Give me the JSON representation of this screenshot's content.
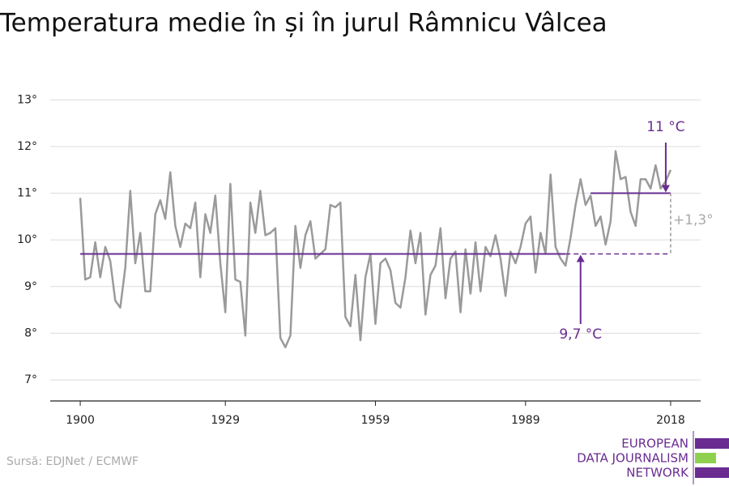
{
  "chart_data": {
    "type": "line",
    "title": "Temperatura medie în și în jurul Râmnicu Vâlcea",
    "x": [
      1900,
      1901,
      1902,
      1903,
      1904,
      1905,
      1906,
      1907,
      1908,
      1909,
      1910,
      1911,
      1912,
      1913,
      1914,
      1915,
      1916,
      1917,
      1918,
      1919,
      1920,
      1921,
      1922,
      1923,
      1924,
      1925,
      1926,
      1927,
      1928,
      1929,
      1930,
      1931,
      1932,
      1933,
      1934,
      1935,
      1936,
      1937,
      1938,
      1939,
      1940,
      1941,
      1942,
      1943,
      1944,
      1945,
      1946,
      1947,
      1948,
      1949,
      1950,
      1951,
      1952,
      1953,
      1954,
      1955,
      1956,
      1957,
      1958,
      1959,
      1960,
      1961,
      1962,
      1963,
      1964,
      1965,
      1966,
      1967,
      1968,
      1969,
      1970,
      1971,
      1972,
      1973,
      1974,
      1975,
      1976,
      1977,
      1978,
      1979,
      1980,
      1981,
      1982,
      1983,
      1984,
      1985,
      1986,
      1987,
      1988,
      1989,
      1990,
      1991,
      1992,
      1993,
      1994,
      1995,
      1996,
      1997,
      1998,
      1999,
      2000,
      2001,
      2002,
      2003,
      2004,
      2005,
      2006,
      2007,
      2008,
      2009,
      2010,
      2011,
      2012,
      2013,
      2014,
      2015,
      2016,
      2017,
      2018
    ],
    "series": [
      {
        "color": "#9a9a9a",
        "values": [
          10.9,
          9.15,
          9.2,
          9.95,
          9.2,
          9.85,
          9.55,
          8.7,
          8.55,
          9.4,
          11.05,
          9.5,
          10.15,
          8.9,
          8.9,
          10.55,
          10.85,
          10.45,
          11.45,
          10.3,
          9.85,
          10.35,
          10.25,
          10.8,
          9.2,
          10.55,
          10.15,
          10.95,
          9.5,
          8.45,
          11.2,
          9.15,
          9.1,
          7.95,
          10.8,
          10.15,
          11.05,
          10.1,
          10.15,
          10.25,
          7.9,
          7.7,
          7.95,
          10.3,
          9.4,
          10.1,
          10.4,
          9.6,
          9.7,
          9.8,
          10.75,
          10.7,
          10.8,
          8.35,
          8.15,
          9.25,
          7.85,
          9.2,
          9.7,
          8.2,
          9.5,
          9.6,
          9.35,
          8.65,
          8.55,
          9.2,
          10.2,
          9.5,
          10.15,
          8.4,
          9.25,
          9.45,
          10.25,
          8.75,
          9.6,
          9.75,
          8.45,
          9.8,
          8.85,
          9.95,
          8.9,
          9.85,
          9.65,
          10.1,
          9.6,
          8.8,
          9.75,
          9.5,
          9.85,
          10.35,
          10.5,
          9.3,
          10.15,
          9.7,
          11.4,
          9.85,
          9.6,
          9.45,
          10.05,
          10.75,
          11.3,
          10.75,
          10.95,
          10.3,
          10.5,
          9.9,
          10.4,
          11.9,
          11.3,
          11.35,
          10.6,
          10.3,
          11.3,
          11.3,
          11.1,
          11.6,
          11.1,
          11.25,
          11.5
        ]
      }
    ],
    "xlim": [
      1894,
      2024
    ],
    "xticks": [
      1900,
      1929,
      1959,
      1989,
      2018
    ],
    "ylim": [
      6.55,
      13.3
    ],
    "yticks": [
      {
        "value": 7,
        "label": "7°"
      },
      {
        "value": 8,
        "label": "8°"
      },
      {
        "value": 9,
        "label": "9°"
      },
      {
        "value": 10,
        "label": "10°"
      },
      {
        "value": 11,
        "label": "11°"
      },
      {
        "value": 12,
        "label": "12°"
      },
      {
        "value": 13,
        "label": "13°"
      }
    ],
    "grid": true,
    "baseline": {
      "value": 9.7,
      "label": "9,7 °C",
      "color": "#6a2c91",
      "x_start": 1900,
      "x_solid_end": 1997,
      "x_end": 2018,
      "label_x": 2000
    },
    "recent": {
      "value": 11,
      "label": "11 °C",
      "color": "#6a2c91",
      "x_start": 2002,
      "x_end": 2018
    },
    "difference": {
      "label": "+1,3°",
      "x": 2018
    }
  },
  "source": "Sursă: EDJNet / ECMWF",
  "logo": [
    "EUROPEAN",
    "DATA JOURNALISM",
    "NETWORK"
  ]
}
